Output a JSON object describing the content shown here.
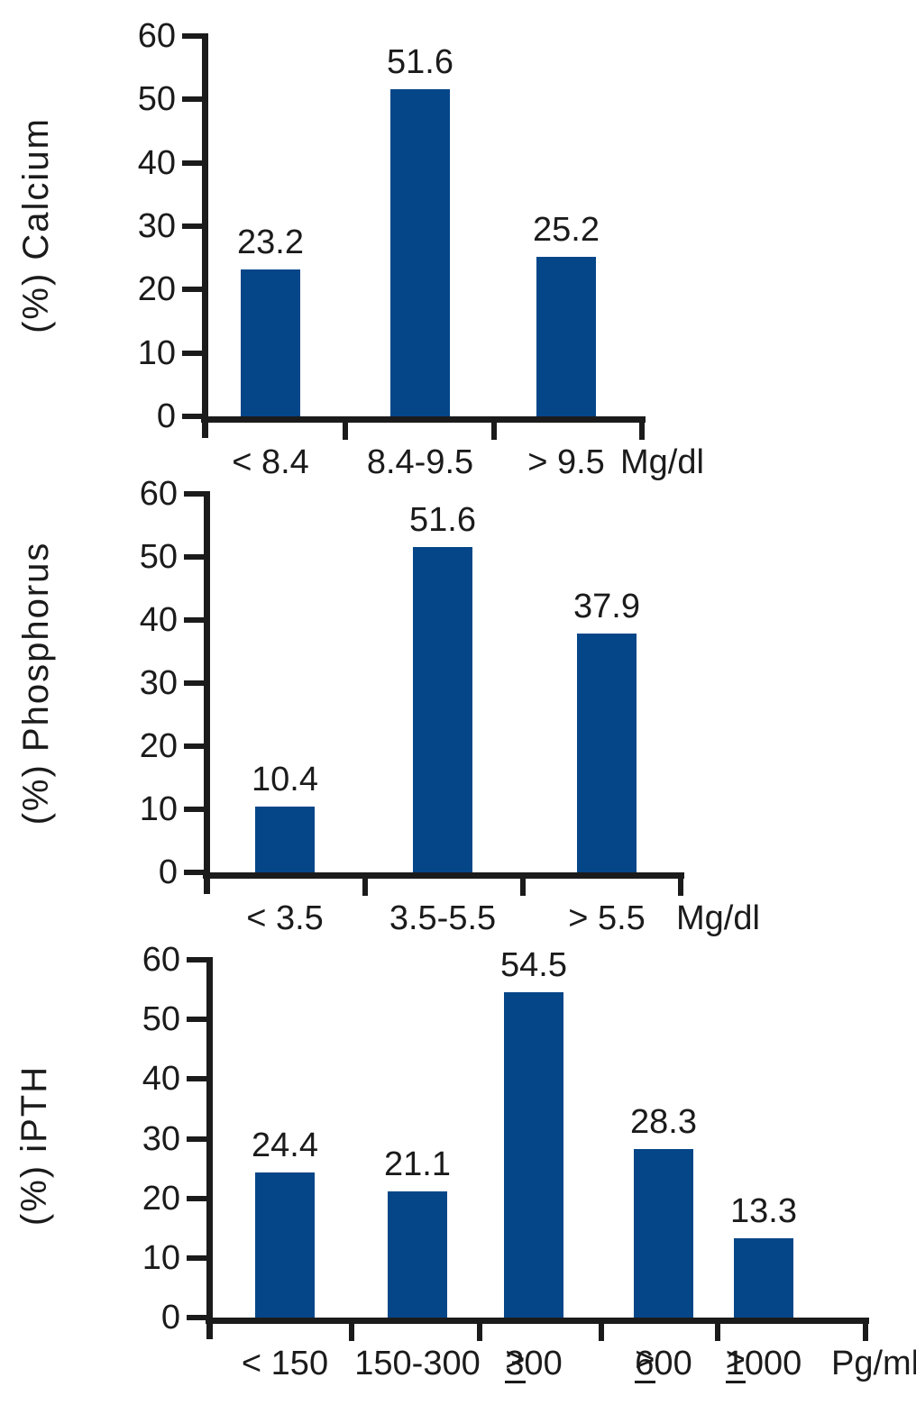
{
  "figure": {
    "background": "#ffffff",
    "ink_color": "#1b1b1b",
    "bar_color": "#054689"
  },
  "chart_data": [
    {
      "type": "bar",
      "title": "",
      "ylabel": "(%) Calcium",
      "xlabel": "",
      "unit_label": "Mg/dl",
      "categories": [
        "< 8.4",
        "8.4-9.5",
        "> 9.5"
      ],
      "values": [
        23.2,
        51.6,
        25.2
      ],
      "value_labels": [
        "23.2",
        "51.6",
        "25.2"
      ],
      "ylim": [
        0,
        60
      ],
      "ytick_labels": [
        "0",
        "10",
        "20",
        "30",
        "40",
        "50",
        "60"
      ],
      "grid": false,
      "legend": "none",
      "bar_color": "#054689"
    },
    {
      "type": "bar",
      "title": "",
      "ylabel": "(%) Phosphorus",
      "xlabel": "",
      "unit_label": "Mg/dl",
      "categories": [
        "< 3.5",
        "3.5-5.5",
        "> 5.5"
      ],
      "values": [
        10.4,
        51.6,
        37.9
      ],
      "value_labels": [
        "10.4",
        "51.6",
        "37.9"
      ],
      "ylim": [
        0,
        60
      ],
      "ytick_labels": [
        "0",
        "10",
        "20",
        "30",
        "40",
        "50",
        "60"
      ],
      "grid": false,
      "legend": "none",
      "bar_color": "#054689"
    },
    {
      "type": "bar",
      "title": "",
      "ylabel": "(%) iPTH",
      "xlabel": "",
      "unit_label": "Pg/ml",
      "categories": [
        "< 150",
        "150-300",
        "≥ 300",
        "≥ 600",
        "≥ 1000"
      ],
      "values": [
        24.4,
        21.1,
        54.5,
        28.3,
        13.3
      ],
      "value_labels": [
        "24.4",
        "21.1",
        "54.5",
        "28.3",
        "13.3"
      ],
      "ylim": [
        0,
        60
      ],
      "ytick_labels": [
        "0",
        "10",
        "20",
        "30",
        "40",
        "50",
        "60"
      ],
      "grid": false,
      "legend": "none",
      "bar_color": "#054689"
    }
  ]
}
